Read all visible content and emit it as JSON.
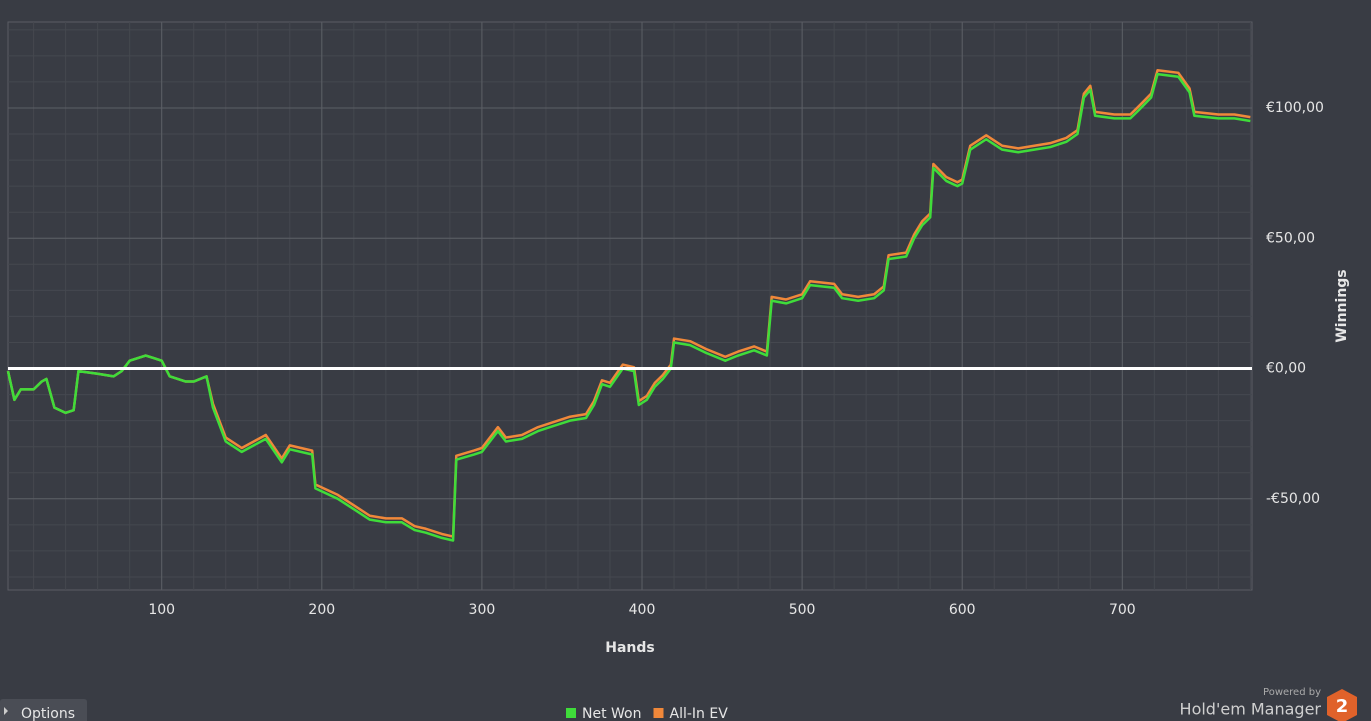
{
  "chart_data": {
    "type": "line",
    "xlabel": "Hands",
    "ylabel": "Winnings",
    "xlim": [
      4,
      781
    ],
    "ylim": [
      -85,
      133
    ],
    "xticks": [
      100,
      200,
      300,
      400,
      500,
      600,
      700
    ],
    "yticks": [
      {
        "value": -50,
        "label": "-€50,00"
      },
      {
        "value": 0,
        "label": "€0,00"
      },
      {
        "value": 50,
        "label": "€50,00"
      },
      {
        "value": 100,
        "label": "€100,00"
      }
    ],
    "grid": true,
    "zero_line": true,
    "legend": "bottom",
    "x": [
      4,
      8,
      12,
      20,
      25,
      28,
      33,
      40,
      45,
      48,
      60,
      70,
      75,
      80,
      90,
      95,
      100,
      105,
      115,
      120,
      128,
      132,
      140,
      150,
      165,
      175,
      180,
      194,
      196,
      210,
      220,
      230,
      240,
      250,
      258,
      265,
      275,
      282,
      284,
      295,
      300,
      310,
      315,
      325,
      335,
      345,
      355,
      365,
      370,
      375,
      380,
      388,
      395,
      398,
      403,
      408,
      413,
      418,
      420,
      430,
      440,
      452,
      460,
      470,
      478,
      481,
      490,
      500,
      505,
      520,
      525,
      535,
      545,
      551,
      554,
      565,
      570,
      575,
      580,
      582,
      590,
      597,
      600,
      605,
      615,
      625,
      635,
      645,
      655,
      665,
      672,
      676,
      680,
      683,
      695,
      705,
      710,
      718,
      722,
      735,
      742,
      745,
      760,
      770,
      780
    ],
    "series": [
      {
        "name": "All-In EV",
        "color": "#f0883a",
        "values": [
          -1,
          -12,
          -8,
          -8,
          -5,
          -4,
          -15,
          -17,
          -16,
          -1,
          -2,
          -3,
          -1,
          3,
          5,
          4,
          3,
          -3,
          -5,
          -5,
          -3,
          -13.5,
          -26.5,
          -30.5,
          -25.5,
          -34.5,
          -29.5,
          -31.5,
          -44.5,
          -48.5,
          -52.5,
          -56.5,
          -57.5,
          -57.5,
          -60.5,
          -61.5,
          -63.5,
          -64.5,
          -33.5,
          -31.5,
          -30.5,
          -22.5,
          -26.5,
          -25.5,
          -22.5,
          -20.5,
          -18.5,
          -17.5,
          -12.5,
          -4.5,
          -5.5,
          1.5,
          0.5,
          -12.5,
          -10.5,
          -5.5,
          -2.5,
          1.5,
          11.5,
          10.5,
          7.5,
          4.5,
          6.5,
          8.5,
          6.5,
          27.5,
          26.5,
          28.5,
          33.5,
          32.5,
          28.5,
          27.5,
          28.5,
          31.5,
          43.5,
          44.5,
          51.5,
          56.5,
          59.5,
          78.5,
          73.5,
          71.5,
          72.5,
          85.5,
          89.5,
          85.5,
          84.5,
          85.5,
          86.5,
          88.5,
          91.5,
          105.5,
          108.5,
          98.5,
          97.5,
          97.5,
          100.5,
          105.5,
          114.5,
          113.5,
          107.5,
          98.5,
          97.5,
          97.5,
          96.5
        ]
      },
      {
        "name": "Net Won",
        "color": "#3fdc3a",
        "values": [
          -1,
          -12,
          -8,
          -8,
          -5,
          -4,
          -15,
          -17,
          -16,
          -1,
          -2,
          -3,
          -1,
          3,
          5,
          4,
          3,
          -3,
          -5,
          -5,
          -3,
          -15,
          -28,
          -32,
          -27,
          -36,
          -31,
          -33,
          -46,
          -50,
          -54,
          -58,
          -59,
          -59,
          -62,
          -63,
          -65,
          -66,
          -35,
          -33,
          -32,
          -24,
          -28,
          -27,
          -24,
          -22,
          -20,
          -19,
          -14,
          -6,
          -7,
          0,
          -1,
          -14,
          -12,
          -7,
          -4,
          0,
          10,
          9,
          6,
          3,
          5,
          7,
          5,
          26,
          25,
          27,
          32,
          31,
          27,
          26,
          27,
          30,
          42,
          43,
          50,
          55,
          58,
          77,
          72,
          70,
          71,
          84,
          88,
          84,
          83,
          84,
          85,
          87,
          90,
          104,
          107,
          97,
          96,
          96,
          99,
          104,
          113,
          112,
          106,
          97,
          96,
          96,
          95
        ]
      }
    ]
  },
  "ui": {
    "options": "Options",
    "powered_by": "Powered by",
    "brand": "Hold'em Manager",
    "brand_badge": "2"
  }
}
